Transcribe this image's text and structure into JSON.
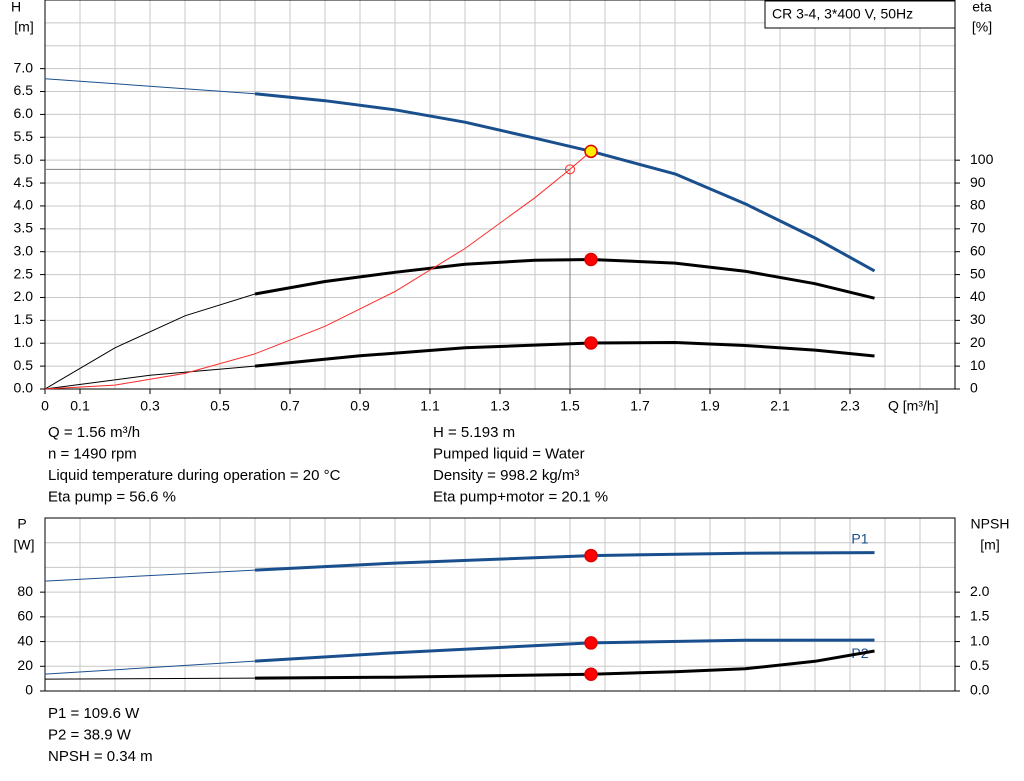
{
  "chart_data": [
    {
      "type": "line",
      "title": "CR 3-4, 3*400 V, 50Hz",
      "x_label": "Q [m³/h]",
      "y_label": "H",
      "y_unit": "[m]",
      "y2_label": "eta",
      "y2_unit": "[%]",
      "xlim": [
        0,
        2.6
      ],
      "xticks": [
        0,
        0.1,
        0.3,
        0.5,
        0.7,
        0.9,
        1.1,
        1.3,
        1.5,
        1.7,
        1.9,
        2.1,
        2.3
      ],
      "xgrid": [
        0,
        0.1,
        0.2,
        0.3,
        0.4,
        0.5,
        0.6,
        0.7,
        0.8,
        0.9,
        1.0,
        1.1,
        1.2,
        1.3,
        1.4,
        1.5,
        1.6,
        1.7,
        1.8,
        1.9,
        2.0,
        2.1,
        2.2,
        2.3,
        2.4,
        2.5,
        2.6
      ],
      "ylim": [
        0,
        8.5
      ],
      "yticks": [
        {
          "value": 0,
          "label": "0.0"
        },
        0.5,
        {
          "value": 1,
          "label": "1.0"
        },
        1.5,
        {
          "value": 2,
          "label": "2.0"
        },
        2.5,
        {
          "value": 3,
          "label": "3.0"
        },
        3.5,
        {
          "value": 4,
          "label": "4.0"
        },
        4.5,
        {
          "value": 5,
          "label": "5.0"
        },
        5.5,
        {
          "value": 6,
          "label": "6.0"
        },
        6.5,
        {
          "value": 7,
          "label": "7.0"
        }
      ],
      "ygrid": [
        0,
        0.5,
        1,
        1.5,
        2,
        2.5,
        3,
        3.5,
        4,
        4.5,
        5,
        5.5,
        6,
        6.5,
        7,
        7.5,
        8,
        8.5
      ],
      "y2lim": [
        0,
        170
      ],
      "y2ticks": [
        0,
        10,
        20,
        30,
        40,
        50,
        60,
        70,
        80,
        90,
        100
      ],
      "thick_from_x": 0.6,
      "series": [
        {
          "color": "#1a4f8e",
          "style": "thin-thick",
          "x": [
            0,
            0.6,
            0.8,
            1.0,
            1.2,
            1.4,
            1.56,
            1.8,
            2.0,
            2.2,
            2.37
          ],
          "values": [
            6.78,
            6.45,
            6.3,
            6.1,
            5.83,
            5.48,
            5.193,
            4.7,
            4.05,
            3.3,
            2.58
          ],
          "marker": {
            "x": 1.56,
            "value": 5.193,
            "color": "#ffee00"
          }
        },
        {
          "color": "#000000",
          "style": "thin-thick",
          "axis": "y2",
          "x": [
            0,
            0.2,
            0.4,
            0.6,
            0.8,
            1.0,
            1.2,
            1.4,
            1.56,
            1.8,
            2.0,
            2.2,
            2.37
          ],
          "values": [
            0,
            18,
            32,
            41.5,
            47,
            51,
            54.5,
            56.3,
            56.6,
            55,
            51.5,
            46,
            39.7
          ],
          "marker": {
            "x": 1.56,
            "value": 56.6,
            "color": "#ff0000"
          }
        },
        {
          "color": "#000000",
          "style": "thin-thick",
          "axis": "y2",
          "x": [
            0,
            0.3,
            0.6,
            0.9,
            1.2,
            1.56,
            1.8,
            2.0,
            2.2,
            2.37
          ],
          "values": [
            0,
            6,
            10,
            14.5,
            18,
            20.1,
            20.3,
            19,
            17,
            14.4
          ],
          "marker": {
            "x": 1.56,
            "value": 20.1,
            "color": "#ff0000"
          }
        },
        {
          "color": "#ff2a2a",
          "style": "thin",
          "x": [
            0,
            0.2,
            0.4,
            0.6,
            0.8,
            1.0,
            1.2,
            1.4,
            1.5,
            1.56
          ],
          "values": [
            0,
            0.085,
            0.34,
            0.77,
            1.37,
            2.13,
            3.07,
            4.18,
            4.8,
            5.193
          ]
        }
      ],
      "cursor": {
        "x": 1.5,
        "y": 4.8
      },
      "notes": [
        [
          "Q = 1.56 m³/h",
          "H = 5.193 m"
        ],
        [
          "n = 1490 rpm",
          "Pumped liquid = Water"
        ],
        [
          "Liquid temperature during operation = 20 °C",
          "Density = 998.2 kg/m³"
        ],
        [
          "Eta pump = 56.6 %",
          "Eta pump+motor = 20.1 %"
        ]
      ]
    },
    {
      "type": "line",
      "y_label": "P",
      "y_unit": "[W]",
      "y2_label": "NPSH",
      "y2_unit": "[m]",
      "xlim": [
        0,
        2.6
      ],
      "xgrid": [
        0,
        0.1,
        0.2,
        0.3,
        0.4,
        0.5,
        0.6,
        0.7,
        0.8,
        0.9,
        1.0,
        1.1,
        1.2,
        1.3,
        1.4,
        1.5,
        1.6,
        1.7,
        1.8,
        1.9,
        2.0,
        2.1,
        2.2,
        2.3,
        2.4,
        2.5,
        2.6
      ],
      "ylim": [
        0,
        140
      ],
      "yticks": [
        0,
        20,
        40,
        60,
        80
      ],
      "ygrid": [
        0,
        20,
        40,
        60,
        80,
        100,
        120,
        140
      ],
      "y2lim": [
        0,
        3.5
      ],
      "y2ticks": [
        {
          "value": 0,
          "label": "0.0"
        },
        0.5,
        {
          "value": 1,
          "label": "1.0"
        },
        1.5,
        {
          "value": 2,
          "label": "2.0"
        }
      ],
      "thick_from_x": 0.6,
      "series": [
        {
          "name": "P1",
          "color": "#1a4f8e",
          "style": "thin-thick",
          "x": [
            0,
            0.6,
            1.0,
            1.56,
            2.0,
            2.37
          ],
          "values": [
            88.9,
            97.8,
            103.5,
            109.6,
            111.5,
            112
          ],
          "marker": {
            "x": 1.56,
            "value": 109.6,
            "color": "#ff0000"
          }
        },
        {
          "name": "P2",
          "color": "#1a4f8e",
          "style": "thin-thick",
          "x": [
            0,
            0.6,
            1.0,
            1.56,
            2.0,
            2.37
          ],
          "values": [
            13.7,
            24.2,
            31,
            38.9,
            41,
            41.2
          ],
          "marker": {
            "x": 1.56,
            "value": 38.9,
            "color": "#ff0000"
          }
        },
        {
          "color": "#000000",
          "style": "thin-thick",
          "axis": "y2",
          "x": [
            0,
            0.6,
            1.0,
            1.56,
            1.8,
            2.0,
            2.2,
            2.37
          ],
          "values": [
            0.24,
            0.26,
            0.28,
            0.34,
            0.39,
            0.45,
            0.6,
            0.81
          ],
          "marker": {
            "x": 1.56,
            "value": 0.34,
            "color": "#ff0000"
          }
        }
      ],
      "notes": [
        [
          "P1 = 109.6 W"
        ],
        [
          "P2 = 38.9 W"
        ],
        [
          "NPSH = 0.34 m"
        ]
      ]
    }
  ]
}
